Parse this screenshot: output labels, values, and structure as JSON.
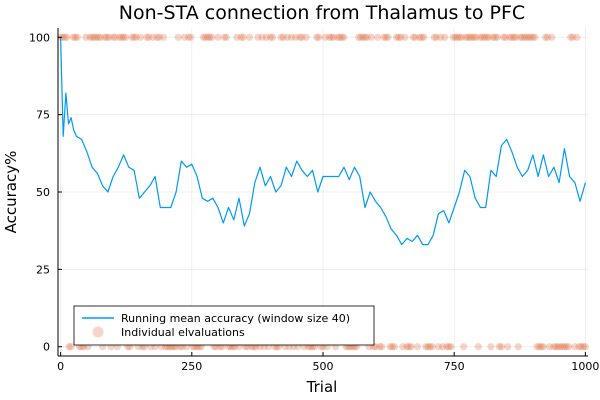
{
  "chart_data": {
    "type": "line",
    "title": "Non-STA connection from Thalamus to PFC",
    "xlabel": "Trial",
    "ylabel": "Accuracy%",
    "xlim": [
      -5,
      1005
    ],
    "ylim": [
      -3,
      103
    ],
    "xticks": [
      0,
      250,
      500,
      750,
      1000
    ],
    "yticks": [
      0,
      25,
      50,
      75,
      100
    ],
    "grid": true,
    "legend_position": "bottom-left",
    "series": [
      {
        "name": "Running mean accuracy (window size 40)",
        "kind": "line",
        "color": "#009af9",
        "x": [
          0,
          5,
          10,
          15,
          20,
          25,
          30,
          40,
          50,
          60,
          70,
          80,
          90,
          100,
          110,
          120,
          130,
          140,
          150,
          160,
          170,
          180,
          190,
          200,
          210,
          220,
          230,
          240,
          250,
          260,
          270,
          280,
          290,
          300,
          310,
          320,
          330,
          340,
          350,
          360,
          370,
          380,
          390,
          400,
          410,
          420,
          430,
          440,
          450,
          460,
          470,
          480,
          490,
          500,
          510,
          520,
          530,
          540,
          550,
          560,
          570,
          580,
          590,
          600,
          610,
          620,
          630,
          640,
          650,
          660,
          670,
          680,
          690,
          700,
          710,
          720,
          730,
          740,
          750,
          760,
          770,
          780,
          790,
          800,
          810,
          820,
          830,
          840,
          850,
          860,
          870,
          880,
          890,
          900,
          910,
          920,
          930,
          940,
          950,
          960,
          970,
          980,
          990,
          1000
        ],
        "y": [
          100,
          68,
          82,
          72,
          74,
          70,
          68,
          67,
          63,
          58,
          56,
          52,
          50,
          55,
          58,
          62,
          58,
          57,
          48,
          50,
          52,
          55,
          45,
          45,
          45,
          50,
          60,
          58,
          59,
          55,
          48,
          47,
          48,
          45,
          40,
          45,
          41,
          48,
          39,
          43,
          53,
          58,
          52,
          55,
          50,
          52,
          58,
          55,
          60,
          57,
          55,
          57,
          50,
          55,
          55,
          55,
          55,
          58,
          54,
          58,
          55,
          45,
          50,
          47,
          45,
          42,
          38,
          36,
          33,
          35,
          34,
          36,
          33,
          33,
          36,
          43,
          44,
          40,
          45,
          50,
          57,
          55,
          48,
          45,
          45,
          57,
          55,
          65,
          67,
          63,
          58,
          55,
          57,
          62,
          55,
          62,
          55,
          58,
          53,
          64,
          55,
          53,
          47,
          53
        ]
      },
      {
        "name": "Individual elvaluations",
        "kind": "scatter",
        "color": "#e26f46",
        "values": [
          0,
          100
        ]
      }
    ]
  }
}
